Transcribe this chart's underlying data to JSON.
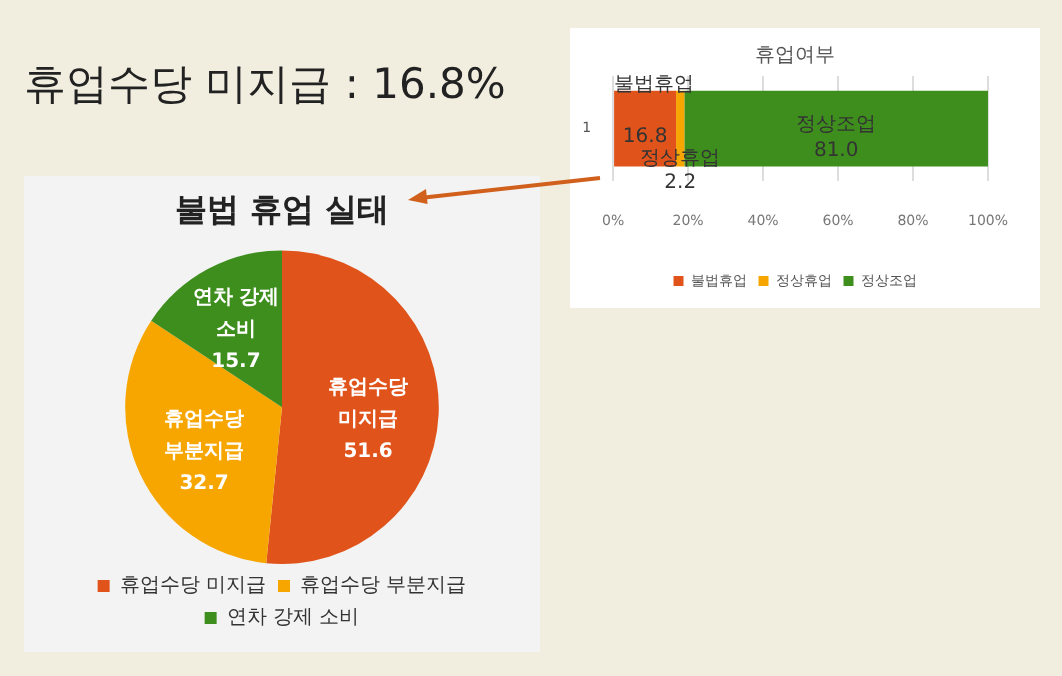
{
  "chart_data": [
    {
      "type": "other",
      "title": "휴업수당 미지급 : 16.8%"
    },
    {
      "type": "bar",
      "title": "휴업여부",
      "orientation": "horizontal",
      "stacked": true,
      "categories": [
        "1"
      ],
      "series": [
        {
          "name": "불법휴업",
          "color": "#e0541c",
          "values": [
            16.8
          ],
          "value_labels": [
            "16.8"
          ]
        },
        {
          "name": "정상휴업",
          "color": "#f7a600",
          "values": [
            2.2
          ],
          "value_labels": [
            "2.2"
          ]
        },
        {
          "name": "정상조업",
          "color": "#3e8e1e",
          "values": [
            81.0
          ],
          "value_labels": [
            "81.0"
          ]
        }
      ],
      "xlim": [
        0,
        100
      ],
      "xticks": [
        {
          "value": 0,
          "label": "0%"
        },
        {
          "value": 20,
          "label": "20%"
        },
        {
          "value": 40,
          "label": "40%"
        },
        {
          "value": 60,
          "label": "60%"
        },
        {
          "value": 80,
          "label": "80%"
        },
        {
          "value": 100,
          "label": "100%"
        }
      ],
      "grid": "x",
      "legend": "bottom"
    },
    {
      "type": "pie",
      "title": "불법 휴업 실태",
      "categories": [
        "휴업수당 미지급",
        "휴업수당 부분지급",
        "연차 강제 소비"
      ],
      "values": [
        51.6,
        32.7,
        15.7
      ],
      "colors": [
        "#e0541c",
        "#f7a600",
        "#3e8e1e"
      ],
      "data_labels": true,
      "legend": "bottom"
    }
  ]
}
